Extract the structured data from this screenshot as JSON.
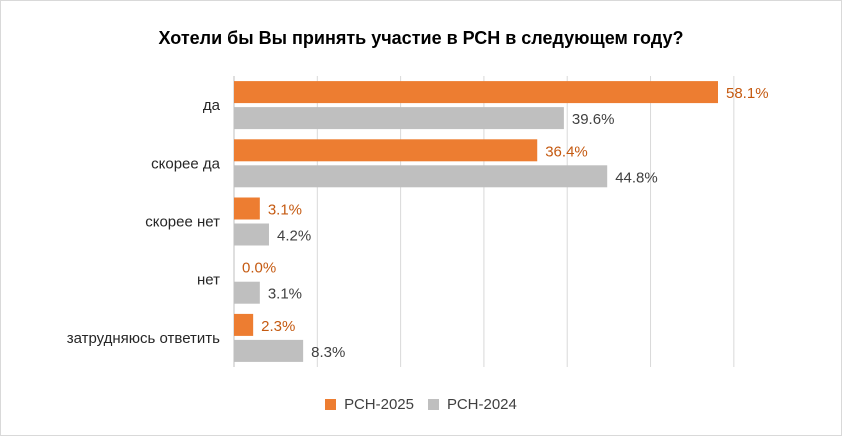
{
  "chart_data": {
    "type": "bar",
    "orientation": "horizontal",
    "title": "Хотели бы Вы принять участие в РСН в следующем году?",
    "categories": [
      "да",
      "скорее  да",
      "скорее  нет",
      "нет",
      "затрудняюсь ответить"
    ],
    "series": [
      {
        "name": "РСН-2025",
        "color": "#ed7d31",
        "values": [
          58.1,
          36.4,
          3.1,
          0.0,
          2.3
        ],
        "labels": [
          "58.1%",
          "36.4%",
          "3.1%",
          "0.0%",
          "2.3%"
        ]
      },
      {
        "name": "РСН-2024",
        "color": "#bfbfbf",
        "values": [
          39.6,
          44.8,
          4.2,
          3.1,
          8.3
        ],
        "labels": [
          "39.6%",
          "44.8%",
          "4.2%",
          "3.1%",
          "8.3%"
        ]
      }
    ],
    "xlim": [
      0,
      70
    ],
    "grid": true,
    "legend_position": "bottom"
  }
}
